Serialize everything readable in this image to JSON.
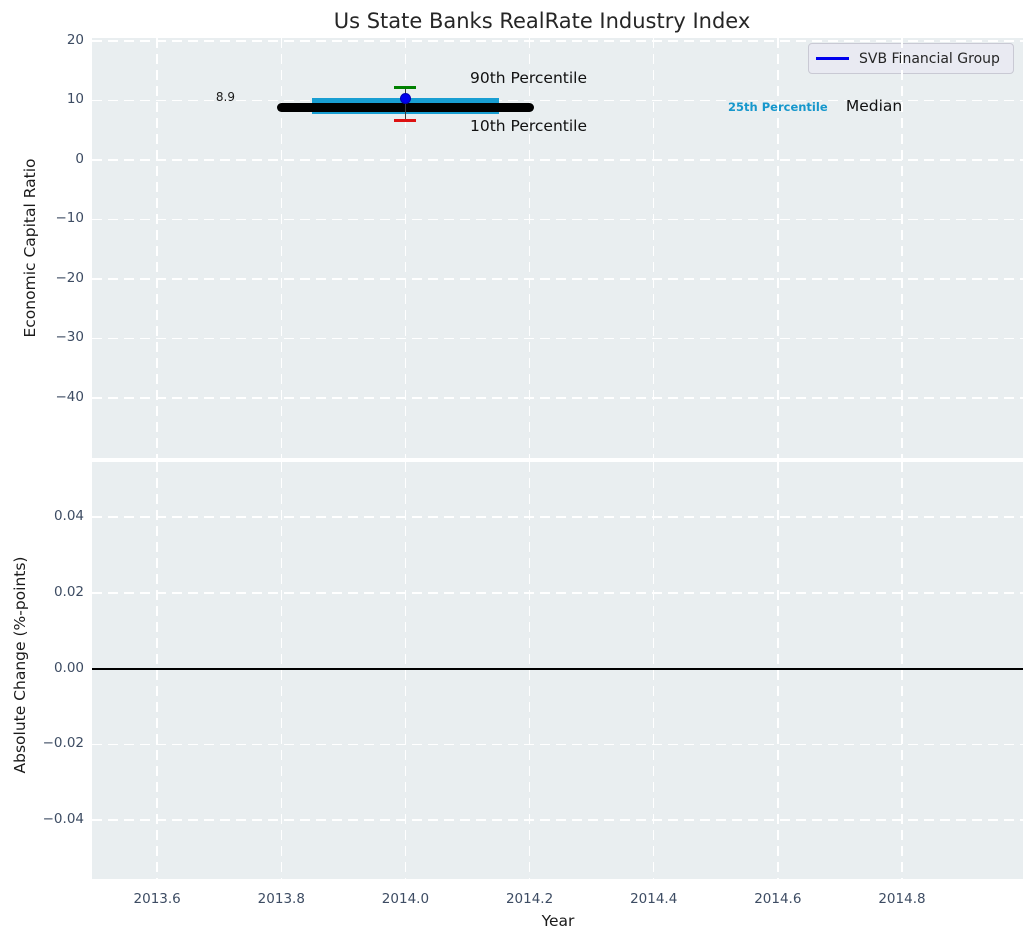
{
  "figure": {
    "title": "Us State Banks RealRate Industry Index"
  },
  "chart_data": [
    {
      "type": "errorbar",
      "title": "Us State Banks RealRate Industry Index",
      "ylabel": "Economic Capital Ratio",
      "xlim": [
        2013.495,
        2014.995
      ],
      "ylim": [
        -50.1,
        20.5
      ],
      "yticks": [
        20,
        10,
        0,
        -10,
        -20,
        -30,
        -40
      ],
      "ytick_labels": [
        "20",
        "10",
        "0",
        "−10",
        "−20",
        "−30",
        "−40"
      ],
      "grid": true,
      "legend": {
        "label": "SVB Financial Group",
        "color": "#0000ee",
        "position": "upper right"
      },
      "series": [
        {
          "name": "SVB Financial Group",
          "type": "scatter",
          "color": "#0000ee",
          "x": [
            2014.0
          ],
          "y": [
            10.25
          ]
        }
      ],
      "industry_stats": {
        "x_center": 2014.0,
        "median": 8.9,
        "median_color": "#000000",
        "median_span_x": [
          2013.8,
          2014.2
        ],
        "p25": 7.7,
        "p75": 10.35,
        "iqr_color": "#189ed2",
        "iqr_span_x": [
          2013.85,
          2014.15
        ],
        "p10": 6.7,
        "p10_color": "#dd1111",
        "p90": 12.1,
        "p90_color": "#008000",
        "whisker_color": "#3a3a3a"
      },
      "annotations": [
        {
          "id": "median-value-label",
          "text": "8.9",
          "x": 2013.71,
          "y": 10.6,
          "ha": "center",
          "size": 12,
          "bold": false,
          "color": "#1a1a1a"
        },
        {
          "id": "p90-label",
          "text": "90th Percentile",
          "x": 2014.104,
          "y": 13.7,
          "ha": "left",
          "size": 15.5,
          "bold": false,
          "color": "#111111"
        },
        {
          "id": "p10-label",
          "text": "10th Percentile",
          "x": 2014.104,
          "y": 5.7,
          "ha": "left",
          "size": 15.5,
          "bold": false,
          "color": "#111111"
        },
        {
          "id": "p25-label",
          "text": "25th Percentile",
          "x": 2014.6,
          "y": 8.9,
          "ha": "center",
          "size": 11.5,
          "bold": true,
          "color": "#1697cc"
        },
        {
          "id": "median-word-label",
          "text": "Median",
          "x": 2014.755,
          "y": 9.0,
          "ha": "center",
          "size": 15.5,
          "bold": false,
          "color": "#111111"
        }
      ]
    },
    {
      "type": "line",
      "ylabel": "Absolute Change (%-points)",
      "xlabel": "Year",
      "xlim": [
        2013.495,
        2014.995
      ],
      "ylim": [
        -0.0555,
        0.0545
      ],
      "yticks": [
        0.04,
        0.02,
        0.0,
        -0.02,
        -0.04
      ],
      "ytick_labels": [
        "0.04",
        "0.02",
        "0.00",
        "−0.02",
        "−0.04"
      ],
      "xticks": [
        2013.6,
        2013.8,
        2014.0,
        2014.2,
        2014.4,
        2014.6,
        2014.8
      ],
      "xtick_labels": [
        "2013.6",
        "2013.8",
        "2014.0",
        "2014.2",
        "2014.4",
        "2014.6",
        "2014.8"
      ],
      "zero_line": 0.0,
      "zero_line_color": "#000000",
      "series": []
    }
  ],
  "colors": {
    "plot_background": "#e9eef0",
    "grid": "#ffffff",
    "tick_label": "#3d4c63",
    "text": "#262626"
  }
}
